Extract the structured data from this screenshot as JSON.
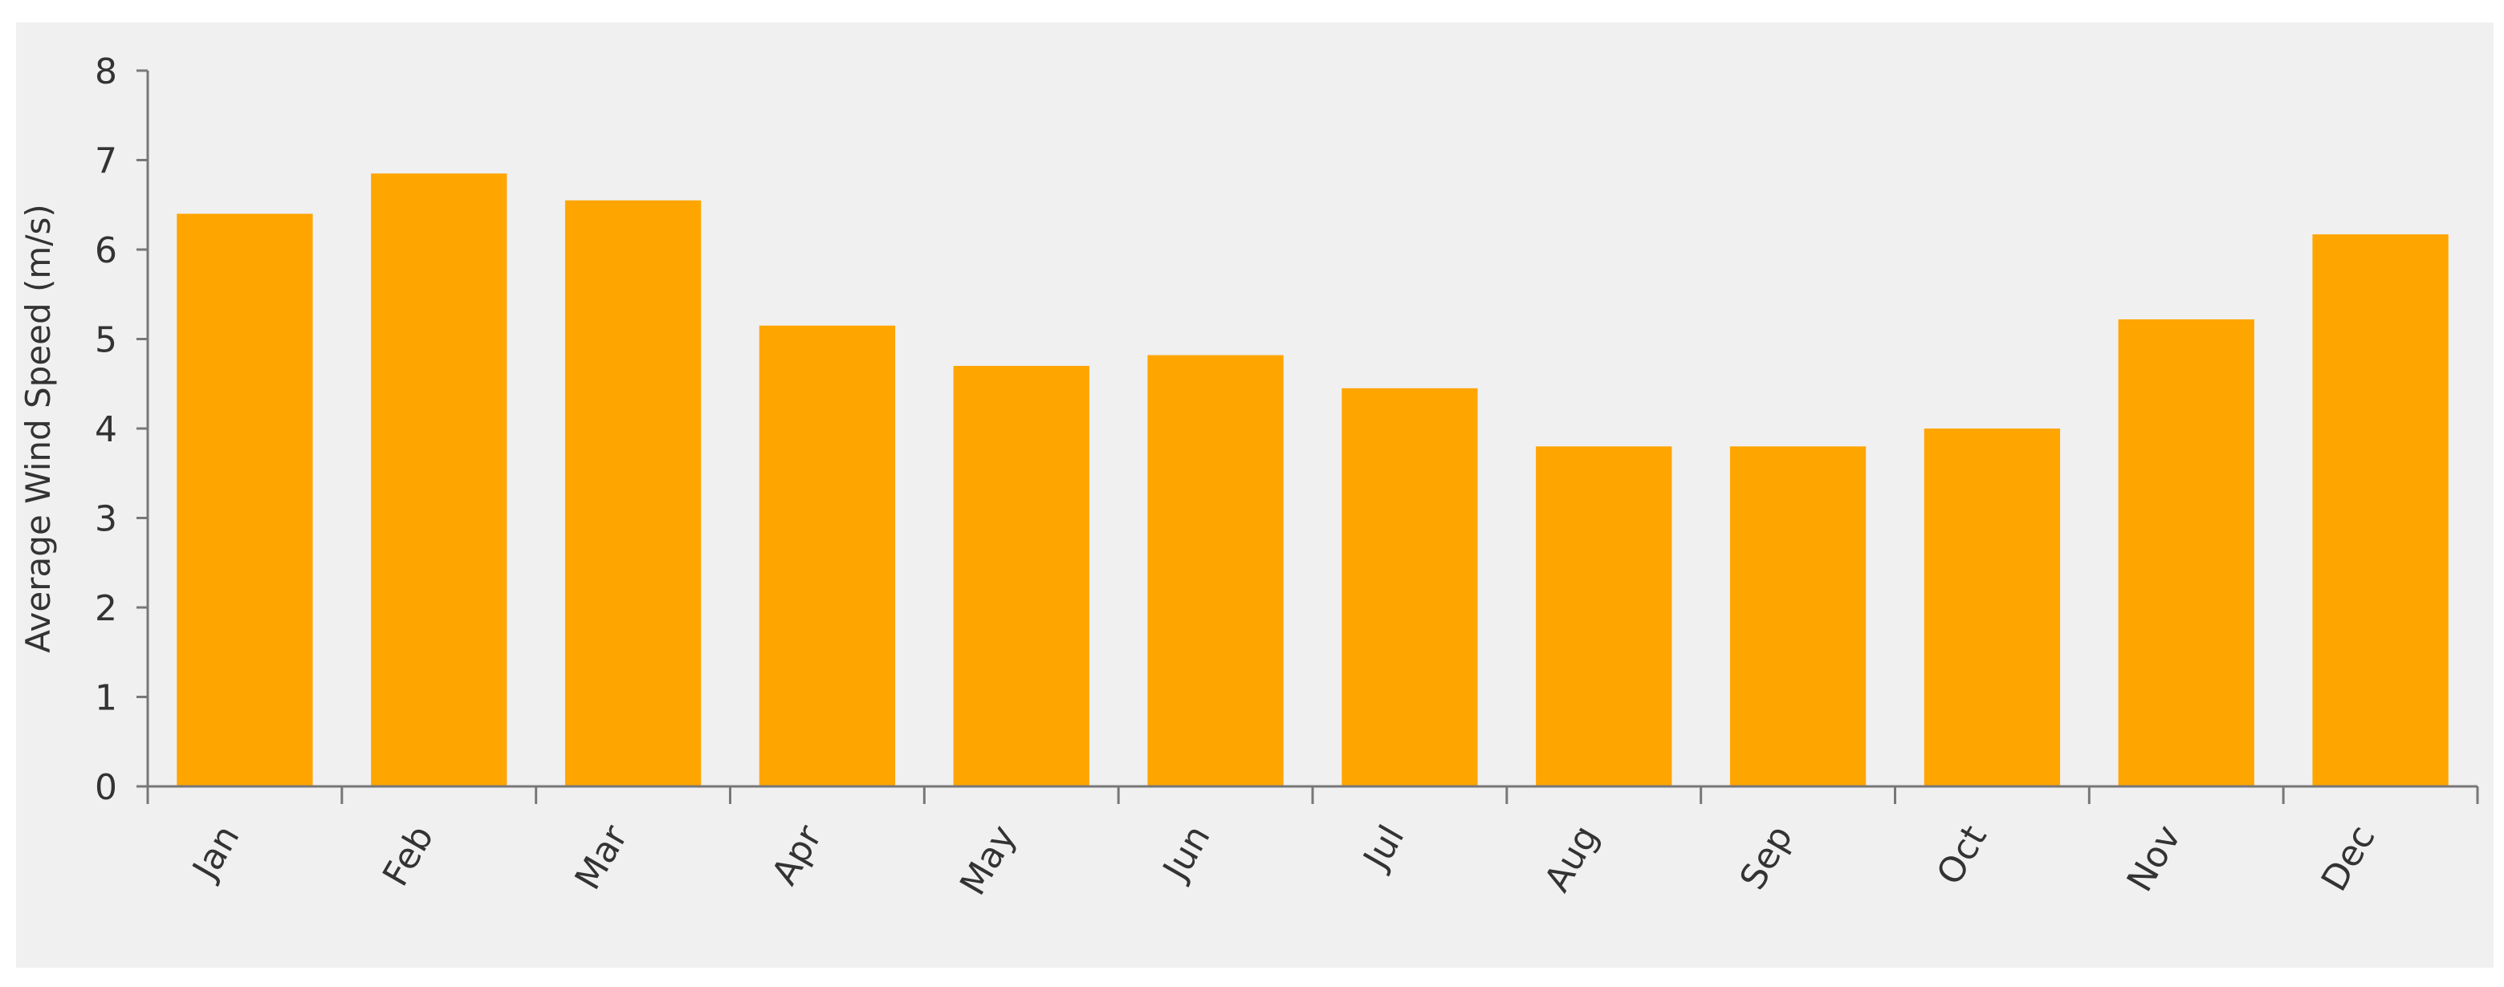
{
  "chart_data": {
    "type": "bar",
    "y_label": "Average Wind Speed (m/s)",
    "categories": [
      "Jan",
      "Feb",
      "Mar",
      "Apr",
      "May",
      "Jun",
      "Jul",
      "Aug",
      "Sep",
      "Oct",
      "Nov",
      "Dec"
    ],
    "values": [
      6.4,
      6.85,
      6.55,
      5.15,
      4.7,
      4.82,
      4.45,
      3.8,
      3.8,
      4.0,
      5.22,
      6.17
    ],
    "color": "#ffa500",
    "ylim": [
      0,
      8
    ],
    "yticks": [
      0,
      1,
      2,
      3,
      4,
      5,
      6,
      7,
      8
    ],
    "grid": false
  }
}
